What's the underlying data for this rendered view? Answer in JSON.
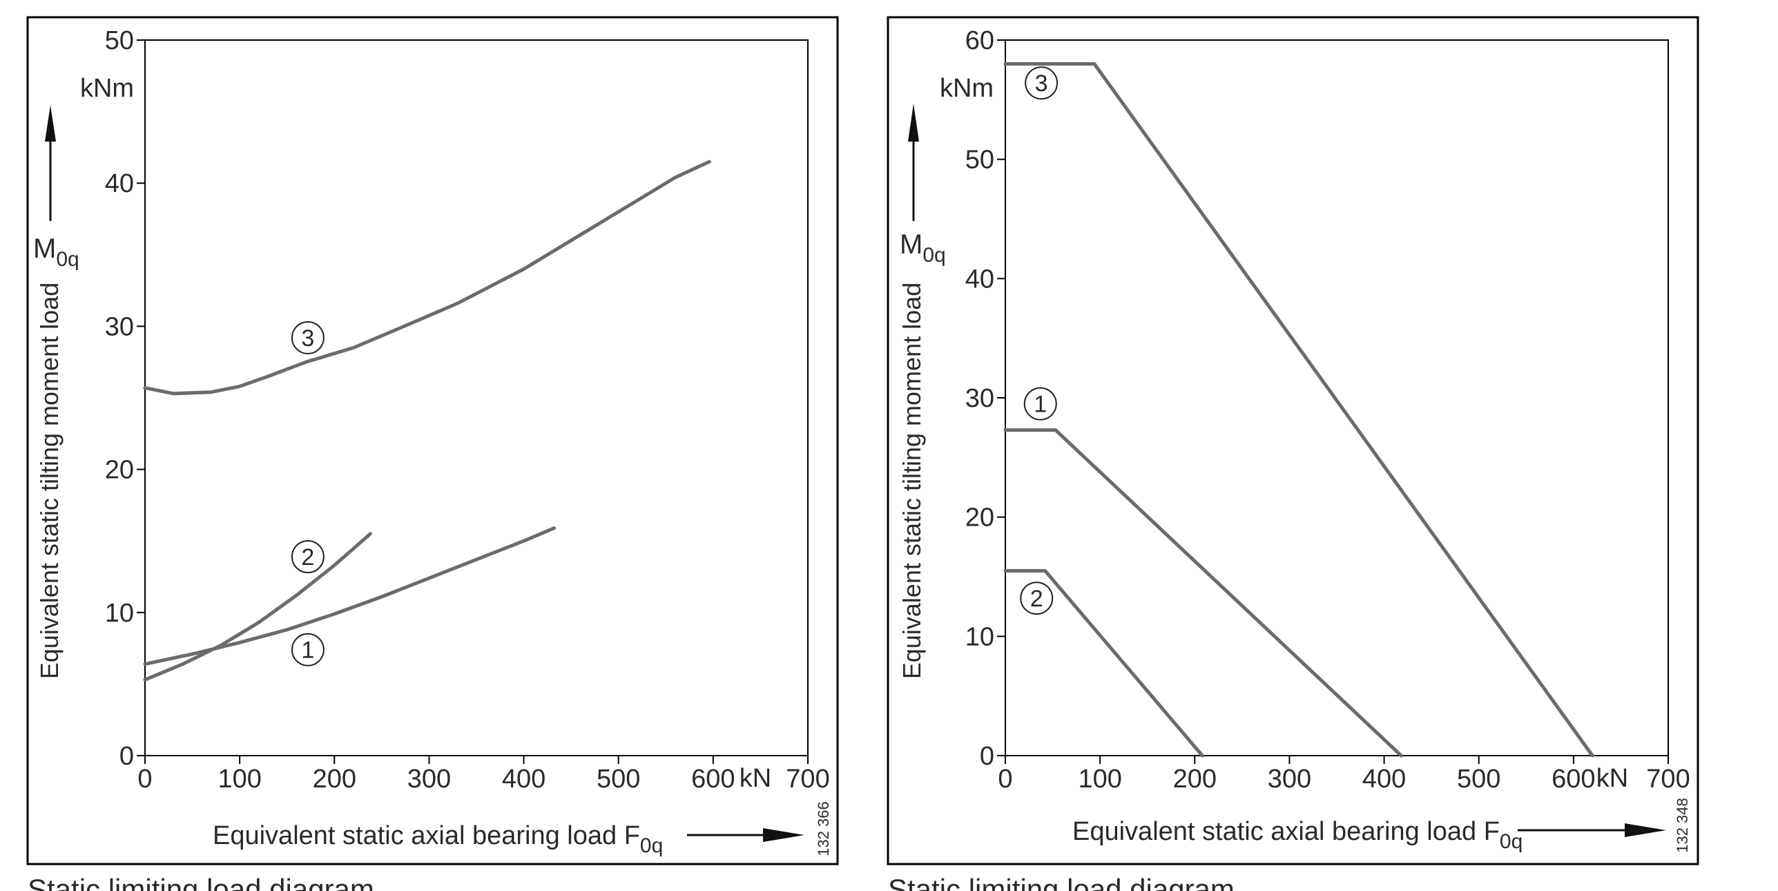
{
  "charts": [
    {
      "caption": "Static limiting load diagram",
      "figure_number": "132 366",
      "y_unit": "kNm",
      "x_unit": "kN",
      "ylabel": "Equivalent static tilting moment load",
      "ysymbol": {
        "base": "M",
        "sub": "0q"
      },
      "xlabel": "Equivalent static axial bearing load",
      "xsymbol": {
        "base": "F",
        "sub": "0q"
      }
    },
    {
      "caption": "Static limiting load diagram",
      "figure_number": "132 348",
      "y_unit": "kNm",
      "x_unit": "kN",
      "ylabel": "Equivalent static tilting moment load",
      "ysymbol": {
        "base": "M",
        "sub": "0q"
      },
      "xlabel": "Equivalent static axial bearing load",
      "xsymbol": {
        "base": "F",
        "sub": "0q"
      }
    }
  ],
  "chart_data": [
    {
      "type": "line",
      "xlim": [
        0,
        700
      ],
      "ylim": [
        0,
        50
      ],
      "xticks": [
        0,
        100,
        200,
        300,
        400,
        500,
        600,
        700
      ],
      "yticks": [
        0,
        10,
        20,
        30,
        40,
        50
      ],
      "grid": false,
      "line_color": "#6b6b6b",
      "series": [
        {
          "name": "1",
          "points": [
            [
              0,
              6.4
            ],
            [
              50,
              7.1
            ],
            [
              100,
              7.9
            ],
            [
              150,
              8.8
            ],
            [
              200,
              9.9
            ],
            [
              250,
              11.1
            ],
            [
              300,
              12.4
            ],
            [
              350,
              13.7
            ],
            [
              400,
              15.0
            ],
            [
              432,
              15.9
            ]
          ],
          "label_at": [
            172,
            7.4
          ]
        },
        {
          "name": "2",
          "points": [
            [
              0,
              5.3
            ],
            [
              40,
              6.4
            ],
            [
              80,
              7.7
            ],
            [
              120,
              9.3
            ],
            [
              160,
              11.2
            ],
            [
              200,
              13.3
            ],
            [
              238,
              15.5
            ]
          ],
          "label_at": [
            172,
            13.9
          ]
        },
        {
          "name": "3",
          "points": [
            [
              0,
              25.7
            ],
            [
              30,
              25.3
            ],
            [
              70,
              25.4
            ],
            [
              100,
              25.8
            ],
            [
              130,
              26.5
            ],
            [
              170,
              27.5
            ],
            [
              220,
              28.5
            ],
            [
              270,
              29.9
            ],
            [
              330,
              31.6
            ],
            [
              400,
              34.0
            ],
            [
              460,
              36.4
            ],
            [
              520,
              38.8
            ],
            [
              560,
              40.4
            ],
            [
              596,
              41.5
            ]
          ],
          "label_at": [
            172,
            29.2
          ]
        }
      ]
    },
    {
      "type": "line",
      "xlim": [
        0,
        700
      ],
      "ylim": [
        0,
        60
      ],
      "xticks": [
        0,
        100,
        200,
        300,
        400,
        500,
        600,
        700
      ],
      "yticks": [
        0,
        10,
        20,
        30,
        40,
        50,
        60
      ],
      "grid": false,
      "line_color": "#6b6b6b",
      "series": [
        {
          "name": "1",
          "points": [
            [
              0,
              27.3
            ],
            [
              53,
              27.3
            ],
            [
              418,
              0
            ]
          ],
          "label_at": [
            37,
            29.5
          ]
        },
        {
          "name": "2",
          "points": [
            [
              0,
              15.5
            ],
            [
              42,
              15.5
            ],
            [
              208,
              0
            ]
          ],
          "label_at": [
            33,
            13.2
          ]
        },
        {
          "name": "3",
          "points": [
            [
              0,
              58
            ],
            [
              94,
              58
            ],
            [
              620,
              0
            ]
          ],
          "label_at": [
            38,
            56.4
          ]
        }
      ]
    }
  ]
}
